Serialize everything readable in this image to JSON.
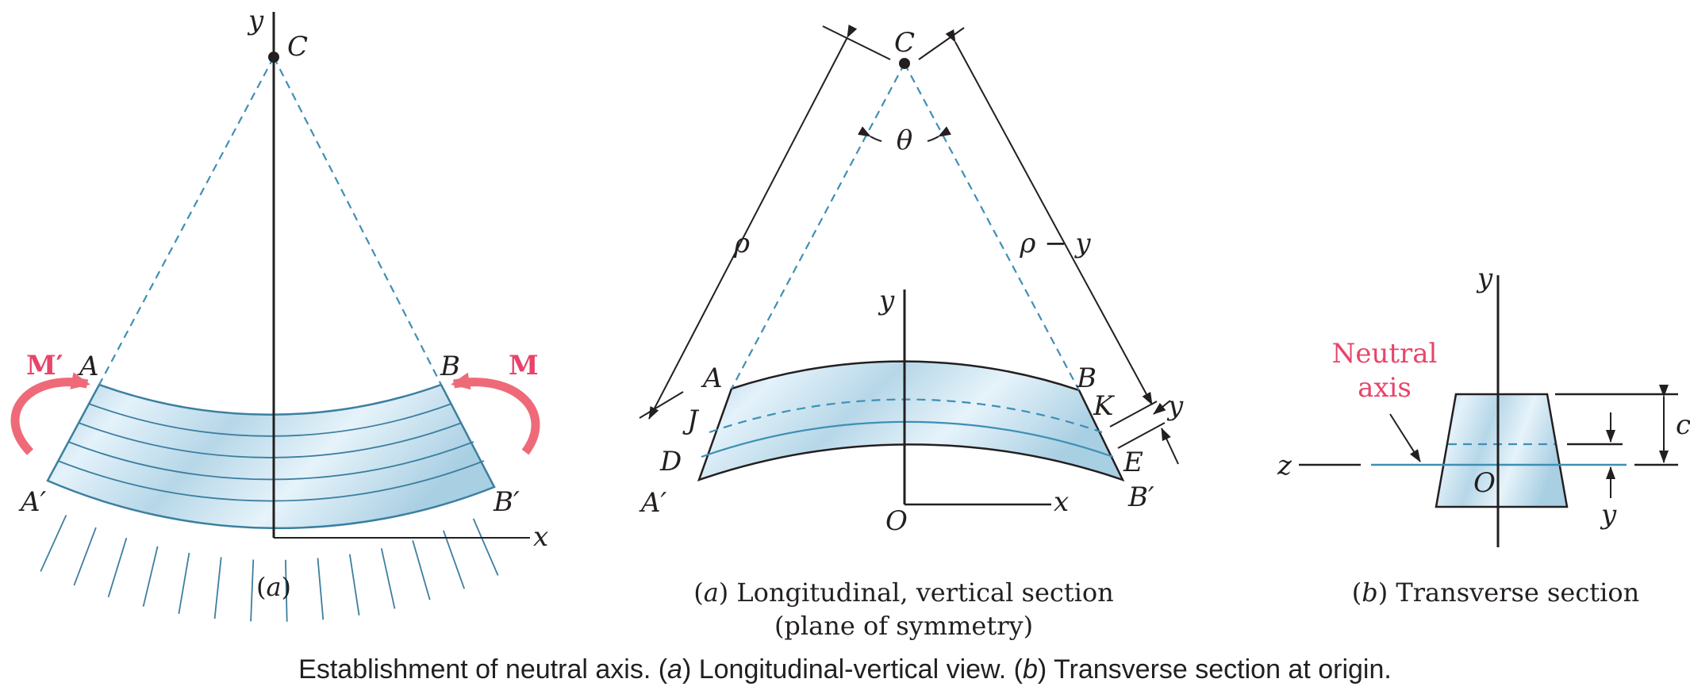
{
  "colors": {
    "beam_fill": "#bcdcec",
    "beam_stroke": "#3d7fa0",
    "neutral_axis": "#3f8fb5",
    "moment_arrow": "#ef6a78",
    "neutral_axis_label": "#e8446a",
    "ink": "#231f20"
  },
  "fig_left": {
    "point_c": "C",
    "axis_y": "y",
    "axis_x": "x",
    "moment_left": "M′",
    "moment_right": "M",
    "pt_a": "A",
    "pt_b": "B",
    "pt_a_prime": "A′",
    "pt_b_prime": "B′",
    "sub_open": "(",
    "sub_letter": "a",
    "sub_close": ")"
  },
  "fig_mid": {
    "point_c": "C",
    "theta": "θ",
    "rho": "ρ",
    "rho_minus_y": "ρ − y",
    "axis_y": "y",
    "axis_x": "x",
    "pt_a": "A",
    "pt_b": "B",
    "pt_j": "J",
    "pt_d": "D",
    "pt_k": "K",
    "pt_e": "E",
    "pt_a_prime": "A′",
    "pt_b_prime": "B′",
    "origin": "O",
    "dim_y": "y",
    "sub_open": "(",
    "sub_letter": "a",
    "sub_text": ") Longitudinal, vertical section",
    "sub_text2": "(plane of symmetry)"
  },
  "fig_right": {
    "axis_y": "y",
    "axis_z": "z",
    "origin": "O",
    "dim_c": "c",
    "dim_y": "y",
    "neutral_line1": "Neutral",
    "neutral_line2": "axis",
    "sub_open": "(",
    "sub_letter": "b",
    "sub_text": ") Transverse section"
  },
  "caption": {
    "part1": "Establishment of neutral axis. (",
    "a": "a",
    "part2": ") Longitudinal-vertical view.  (",
    "b": "b",
    "part3": ") Transverse section at origin."
  }
}
